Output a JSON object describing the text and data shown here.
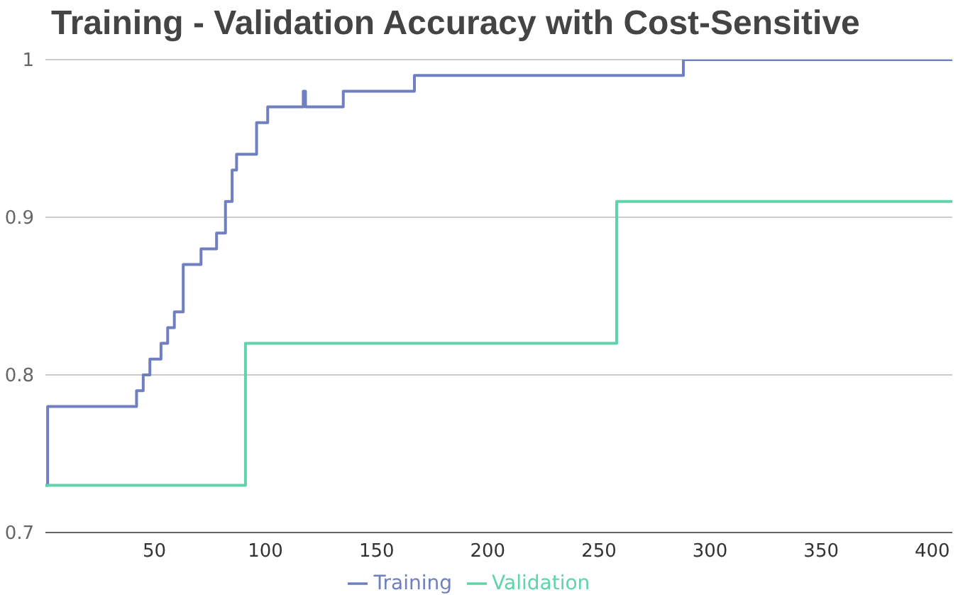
{
  "chart_data": {
    "type": "step",
    "title": "Training - Validation Accuracy with Cost-Sensitive",
    "xlim": [
      1,
      409
    ],
    "xticks": [
      50,
      100,
      150,
      200,
      250,
      300,
      350,
      400
    ],
    "ylim": [
      0.7,
      1
    ],
    "yticks": [
      0.7,
      0.8,
      0.9,
      1
    ],
    "grid": "y",
    "legend": "bottom",
    "marker": "none",
    "line_style": "solid",
    "series": [
      {
        "name": "Training",
        "color": "#6f7fbf",
        "x": [
          1,
          2,
          42,
          45,
          48,
          53,
          56,
          59,
          63,
          71,
          78,
          82,
          85,
          87,
          96,
          101,
          117,
          118,
          135,
          167,
          288,
          409
        ],
        "values": [
          0.73,
          0.78,
          0.79,
          0.8,
          0.81,
          0.82,
          0.83,
          0.84,
          0.87,
          0.88,
          0.89,
          0.91,
          0.93,
          0.94,
          0.96,
          0.97,
          0.98,
          0.97,
          0.98,
          0.99,
          1,
          1
        ]
      },
      {
        "name": "Validation",
        "color": "#5fd4a8",
        "x": [
          1,
          91,
          258,
          409
        ],
        "values": [
          0.73,
          0.82,
          0.91,
          0.91
        ]
      }
    ]
  }
}
